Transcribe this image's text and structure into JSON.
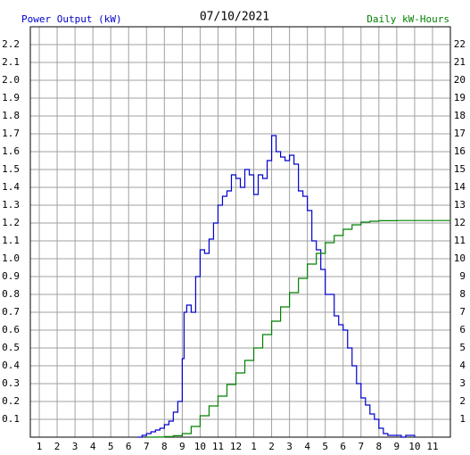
{
  "chart_data": {
    "type": "step",
    "title": "07/10/2021",
    "y_label": "Power Output (kW)",
    "y2_label": "Daily kW-Hours",
    "grid": true,
    "xlim": [
      0.5,
      24
    ],
    "xticks": [
      1,
      2,
      3,
      4,
      5,
      6,
      7,
      8,
      9,
      10,
      11,
      12,
      {
        "value": 13,
        "label": "1"
      },
      {
        "value": 14,
        "label": "2"
      },
      {
        "value": 15,
        "label": "3"
      },
      {
        "value": 16,
        "label": "4"
      },
      {
        "value": 17,
        "label": "5"
      },
      {
        "value": 18,
        "label": "6"
      },
      {
        "value": 19,
        "label": "7"
      },
      {
        "value": 20,
        "label": "8"
      },
      {
        "value": 21,
        "label": "9"
      },
      {
        "value": 22,
        "label": "10"
      },
      {
        "value": 23,
        "label": "11"
      }
    ],
    "ylim": [
      0,
      2.3
    ],
    "yticks": [
      0.1,
      0.2,
      0.3,
      0.4,
      0.5,
      0.6,
      0.7,
      0.8,
      0.9,
      {
        "value": 1,
        "label": "1.0"
      },
      1.1,
      1.2,
      1.3,
      1.4,
      1.5,
      1.6,
      1.7,
      1.8,
      1.9,
      {
        "value": 2,
        "label": "2.0"
      },
      2.1,
      2.2
    ],
    "y2lim": [
      0,
      23
    ],
    "y2ticks": [
      1,
      2,
      3,
      4,
      5,
      6,
      7,
      8,
      9,
      10,
      11,
      12,
      13,
      14,
      15,
      16,
      17,
      18,
      19,
      20,
      21,
      22
    ],
    "series": [
      {
        "name": "Power Output (kW)",
        "color": "#0000cc",
        "x": [
          6.5,
          6.75,
          7,
          7.25,
          7.5,
          7.75,
          8,
          8.25,
          8.5,
          8.75,
          9,
          9.1,
          9.25,
          9.5,
          9.75,
          10,
          10.25,
          10.5,
          10.75,
          11,
          11.25,
          11.5,
          11.75,
          12,
          12.25,
          12.5,
          12.75,
          13,
          13.25,
          13.5,
          13.75,
          14,
          14.25,
          14.5,
          14.75,
          15,
          15.25,
          15.5,
          15.75,
          16,
          16.25,
          16.5,
          16.75,
          17,
          17.25,
          17.5,
          17.75,
          18,
          18.25,
          18.5,
          18.75,
          19,
          19.25,
          19.5,
          19.75,
          20,
          20.25,
          20.5,
          20.75,
          21,
          21.25,
          21.5,
          21.75,
          22
        ],
        "values": [
          0,
          0.01,
          0.02,
          0.03,
          0.04,
          0.05,
          0.07,
          0.09,
          0.14,
          0.2,
          0.44,
          0.7,
          0.74,
          0.7,
          0.9,
          1.05,
          1.03,
          1.11,
          1.2,
          1.3,
          1.35,
          1.38,
          1.47,
          1.45,
          1.4,
          1.5,
          1.47,
          1.36,
          1.47,
          1.45,
          1.55,
          1.69,
          1.6,
          1.57,
          1.55,
          1.58,
          1.53,
          1.38,
          1.35,
          1.27,
          1.1,
          1.05,
          0.94,
          0.8,
          0.8,
          0.68,
          0.63,
          0.6,
          0.5,
          0.4,
          0.3,
          0.22,
          0.18,
          0.13,
          0.1,
          0.05,
          0.02,
          0.01,
          0.01,
          0.01,
          0,
          0.01,
          0.01,
          0
        ]
      },
      {
        "name": "Daily kW-Hours",
        "color": "#008000",
        "axis": "y2",
        "x": [
          7,
          7.5,
          8,
          8.5,
          9,
          9.5,
          10,
          10.5,
          11,
          11.5,
          12,
          12.5,
          13,
          13.5,
          14,
          14.5,
          15,
          15.5,
          16,
          16.5,
          17,
          17.5,
          18,
          18.5,
          19,
          19.5,
          20,
          21,
          22,
          23,
          24
        ],
        "values": [
          0,
          0.01,
          0.03,
          0.08,
          0.2,
          0.6,
          1.2,
          1.75,
          2.3,
          2.95,
          3.6,
          4.3,
          5.0,
          5.75,
          6.5,
          7.3,
          8.1,
          8.9,
          9.7,
          10.3,
          10.9,
          11.3,
          11.65,
          11.9,
          12.05,
          12.1,
          12.13,
          12.14,
          12.14,
          12.14,
          12.14
        ]
      }
    ]
  }
}
